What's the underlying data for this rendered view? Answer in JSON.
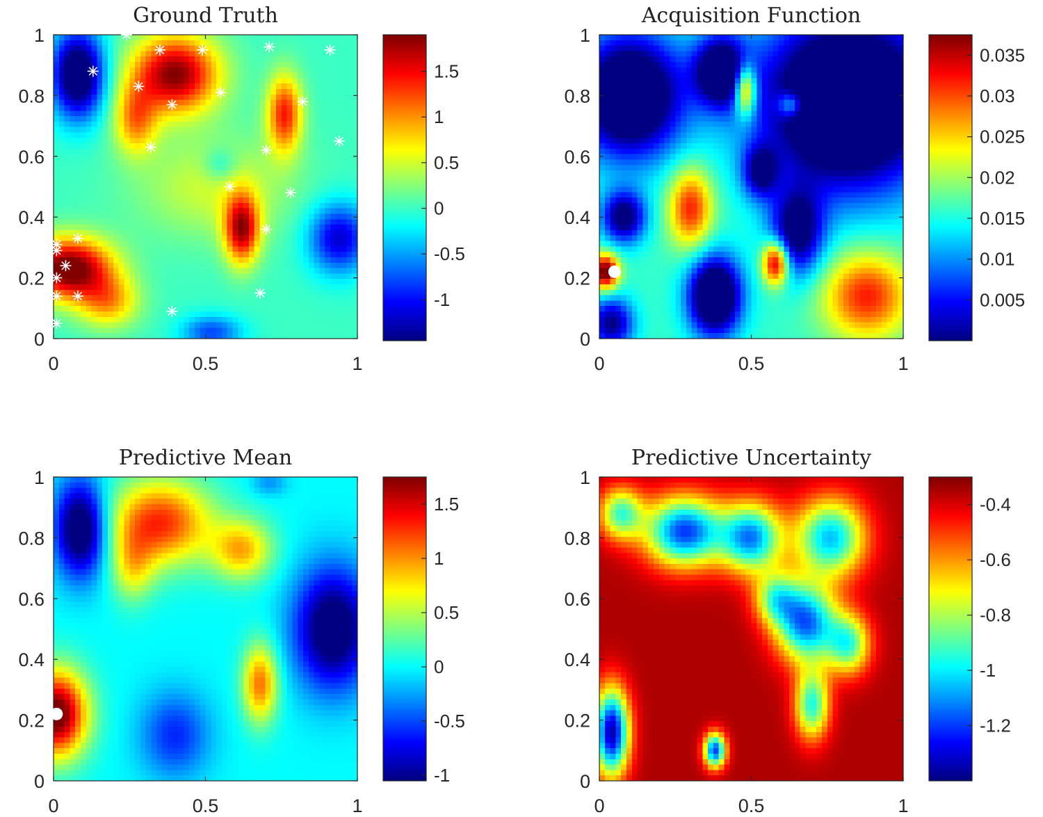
{
  "chart_data": [
    {
      "type": "heatmap",
      "title": "Ground Truth",
      "xlabel": "",
      "ylabel": "",
      "xlim": [
        0,
        1
      ],
      "ylim": [
        0,
        1
      ],
      "xticks": [
        "0",
        "0.5",
        "1"
      ],
      "yticks": [
        "0",
        "0.2",
        "0.4",
        "0.6",
        "0.8",
        "1"
      ],
      "colormap": "jet",
      "clim": [
        -1.45,
        1.9
      ],
      "colorbar_ticks": [
        "-1",
        "-0.5",
        "0",
        "0.5",
        "1",
        "1.5"
      ],
      "colorbar_tick_values": [
        -1,
        -0.5,
        0,
        0.5,
        1,
        1.5
      ],
      "blobs": [
        {
          "x": 0.05,
          "y": 0.23,
          "amp": 2.1,
          "sx": 0.1,
          "sy": 0.07
        },
        {
          "x": 0.18,
          "y": 0.12,
          "amp": 0.9,
          "sx": 0.07,
          "sy": 0.06
        },
        {
          "x": 0.4,
          "y": 0.87,
          "amp": 1.9,
          "sx": 0.1,
          "sy": 0.09
        },
        {
          "x": 0.27,
          "y": 0.72,
          "amp": 1.0,
          "sx": 0.05,
          "sy": 0.08
        },
        {
          "x": 0.62,
          "y": 0.36,
          "amp": 1.7,
          "sx": 0.04,
          "sy": 0.08
        },
        {
          "x": 0.76,
          "y": 0.74,
          "amp": 1.4,
          "sx": 0.04,
          "sy": 0.09
        },
        {
          "x": 0.08,
          "y": 0.87,
          "amp": -1.9,
          "sx": 0.06,
          "sy": 0.1
        },
        {
          "x": 0.94,
          "y": 0.33,
          "amp": -1.2,
          "sx": 0.07,
          "sy": 0.08
        },
        {
          "x": 0.52,
          "y": 0.02,
          "amp": -0.8,
          "sx": 0.07,
          "sy": 0.04
        },
        {
          "x": 0.55,
          "y": 0.57,
          "amp": -0.4,
          "sx": 0.04,
          "sy": 0.04
        },
        {
          "x": 0.53,
          "y": 0.5,
          "amp": 0.5,
          "sx": 0.18,
          "sy": 0.12
        }
      ],
      "markers": [
        {
          "x": 0.24,
          "y": 1.0,
          "style": "star"
        },
        {
          "x": 0.35,
          "y": 0.95,
          "style": "star"
        },
        {
          "x": 0.49,
          "y": 0.95,
          "style": "star"
        },
        {
          "x": 0.71,
          "y": 0.96,
          "style": "star"
        },
        {
          "x": 0.91,
          "y": 0.95,
          "style": "star"
        },
        {
          "x": 0.13,
          "y": 0.88,
          "style": "star"
        },
        {
          "x": 0.28,
          "y": 0.83,
          "style": "star"
        },
        {
          "x": 0.39,
          "y": 0.77,
          "style": "star"
        },
        {
          "x": 0.55,
          "y": 0.81,
          "style": "star"
        },
        {
          "x": 0.82,
          "y": 0.78,
          "style": "star"
        },
        {
          "x": 0.32,
          "y": 0.63,
          "style": "star"
        },
        {
          "x": 0.7,
          "y": 0.62,
          "style": "star"
        },
        {
          "x": 0.94,
          "y": 0.65,
          "style": "star"
        },
        {
          "x": 0.58,
          "y": 0.5,
          "style": "star"
        },
        {
          "x": 0.78,
          "y": 0.48,
          "style": "star"
        },
        {
          "x": 0.7,
          "y": 0.36,
          "style": "star"
        },
        {
          "x": 0.08,
          "y": 0.33,
          "style": "star"
        },
        {
          "x": 0.01,
          "y": 0.31,
          "style": "star"
        },
        {
          "x": 0.01,
          "y": 0.29,
          "style": "star"
        },
        {
          "x": 0.04,
          "y": 0.24,
          "style": "star"
        },
        {
          "x": 0.01,
          "y": 0.2,
          "style": "star"
        },
        {
          "x": 0.01,
          "y": 0.14,
          "style": "star"
        },
        {
          "x": 0.08,
          "y": 0.14,
          "style": "star"
        },
        {
          "x": 0.68,
          "y": 0.15,
          "style": "star"
        },
        {
          "x": 0.39,
          "y": 0.09,
          "style": "star"
        },
        {
          "x": 0.01,
          "y": 0.05,
          "style": "star"
        }
      ]
    },
    {
      "type": "heatmap",
      "title": "Acquisition Function",
      "xlabel": "",
      "ylabel": "",
      "xlim": [
        0,
        1
      ],
      "ylim": [
        0,
        1
      ],
      "xticks": [
        "0",
        "0.5",
        "1"
      ],
      "yticks": [
        "0",
        "0.2",
        "0.4",
        "0.6",
        "0.8",
        "1"
      ],
      "colormap": "jet",
      "clim": [
        0,
        0.0375
      ],
      "colorbar_ticks": [
        "0.005",
        "0.01",
        "0.015",
        "0.02",
        "0.025",
        "0.03",
        "0.035"
      ],
      "colorbar_tick_values": [
        0.005,
        0.01,
        0.015,
        0.02,
        0.025,
        0.03,
        0.035
      ],
      "base": 0.016,
      "blobs": [
        {
          "x": 0.82,
          "y": 0.78,
          "amp": -0.03,
          "sx": 0.2,
          "sy": 0.2
        },
        {
          "x": 0.1,
          "y": 0.8,
          "amp": -0.026,
          "sx": 0.12,
          "sy": 0.14
        },
        {
          "x": 0.4,
          "y": 0.88,
          "amp": -0.022,
          "sx": 0.06,
          "sy": 0.08
        },
        {
          "x": 0.38,
          "y": 0.14,
          "amp": -0.026,
          "sx": 0.06,
          "sy": 0.09
        },
        {
          "x": 0.65,
          "y": 0.35,
          "amp": -0.018,
          "sx": 0.06,
          "sy": 0.1
        },
        {
          "x": 0.08,
          "y": 0.4,
          "amp": -0.018,
          "sx": 0.05,
          "sy": 0.06
        },
        {
          "x": 0.04,
          "y": 0.05,
          "amp": -0.016,
          "sx": 0.05,
          "sy": 0.06
        },
        {
          "x": 0.53,
          "y": 0.55,
          "amp": -0.014,
          "sx": 0.04,
          "sy": 0.06
        },
        {
          "x": 0.3,
          "y": 0.43,
          "amp": 0.016,
          "sx": 0.05,
          "sy": 0.09
        },
        {
          "x": 0.48,
          "y": 0.82,
          "amp": 0.02,
          "sx": 0.025,
          "sy": 0.06
        },
        {
          "x": 0.63,
          "y": 0.77,
          "amp": 0.012,
          "sx": 0.03,
          "sy": 0.03
        },
        {
          "x": 0.58,
          "y": 0.25,
          "amp": 0.022,
          "sx": 0.03,
          "sy": 0.05
        },
        {
          "x": 0.88,
          "y": 0.14,
          "amp": 0.016,
          "sx": 0.1,
          "sy": 0.1
        },
        {
          "x": 0.02,
          "y": 0.22,
          "amp": 0.024,
          "sx": 0.03,
          "sy": 0.04
        }
      ],
      "markers": [
        {
          "x": 0.05,
          "y": 0.22,
          "style": "dot"
        }
      ]
    },
    {
      "type": "heatmap",
      "title": "Predictive Mean",
      "xlabel": "",
      "ylabel": "",
      "xlim": [
        0,
        1
      ],
      "ylim": [
        0,
        1
      ],
      "xticks": [
        "0",
        "0.5",
        "1"
      ],
      "yticks": [
        "0",
        "0.2",
        "0.4",
        "0.6",
        "0.8",
        "1"
      ],
      "colormap": "jet",
      "clim": [
        -1.05,
        1.75
      ],
      "colorbar_ticks": [
        "-1",
        "-0.5",
        "0",
        "0.5",
        "1",
        "1.5"
      ],
      "colorbar_tick_values": [
        -1,
        -0.5,
        0,
        0.5,
        1,
        1.5
      ],
      "blobs": [
        {
          "x": 0.01,
          "y": 0.22,
          "amp": 1.9,
          "sx": 0.07,
          "sy": 0.1
        },
        {
          "x": 0.35,
          "y": 0.85,
          "amp": 1.3,
          "sx": 0.12,
          "sy": 0.1
        },
        {
          "x": 0.26,
          "y": 0.7,
          "amp": 0.6,
          "sx": 0.05,
          "sy": 0.08
        },
        {
          "x": 0.62,
          "y": 0.76,
          "amp": 0.9,
          "sx": 0.07,
          "sy": 0.07
        },
        {
          "x": 0.68,
          "y": 0.32,
          "amp": 1.1,
          "sx": 0.04,
          "sy": 0.09
        },
        {
          "x": 0.09,
          "y": 0.83,
          "amp": -1.4,
          "sx": 0.06,
          "sy": 0.11
        },
        {
          "x": 0.92,
          "y": 0.5,
          "amp": -1.3,
          "sx": 0.09,
          "sy": 0.14
        },
        {
          "x": 0.4,
          "y": 0.15,
          "amp": -0.6,
          "sx": 0.08,
          "sy": 0.1
        },
        {
          "x": 0.71,
          "y": 0.98,
          "amp": -0.3,
          "sx": 0.04,
          "sy": 0.03
        }
      ],
      "markers": [
        {
          "x": 0.01,
          "y": 0.22,
          "style": "dot"
        }
      ]
    },
    {
      "type": "heatmap",
      "title": "Predictive Uncertainty",
      "xlabel": "",
      "ylabel": "",
      "xlim": [
        0,
        1
      ],
      "ylim": [
        0,
        1
      ],
      "xticks": [
        "0",
        "0.5",
        "1"
      ],
      "yticks": [
        "0",
        "0.2",
        "0.4",
        "0.6",
        "0.8",
        "1"
      ],
      "colormap": "jet",
      "clim": [
        -1.4,
        -0.3
      ],
      "colorbar_ticks": [
        "-1.2",
        "-1",
        "-0.8",
        "-0.6",
        "-0.4"
      ],
      "colorbar_tick_values": [
        -1.2,
        -1.0,
        -0.8,
        -0.6,
        -0.4
      ],
      "base": -0.35,
      "blobs": [
        {
          "x": 0.28,
          "y": 0.82,
          "amp": -0.85,
          "sx": 0.09,
          "sy": 0.08
        },
        {
          "x": 0.5,
          "y": 0.8,
          "amp": -0.75,
          "sx": 0.07,
          "sy": 0.08
        },
        {
          "x": 0.76,
          "y": 0.8,
          "amp": -0.7,
          "sx": 0.08,
          "sy": 0.09
        },
        {
          "x": 0.68,
          "y": 0.52,
          "amp": -0.8,
          "sx": 0.07,
          "sy": 0.09
        },
        {
          "x": 0.82,
          "y": 0.45,
          "amp": -0.55,
          "sx": 0.05,
          "sy": 0.07
        },
        {
          "x": 0.7,
          "y": 0.25,
          "amp": -0.6,
          "sx": 0.04,
          "sy": 0.08
        },
        {
          "x": 0.58,
          "y": 0.6,
          "amp": -0.45,
          "sx": 0.05,
          "sy": 0.06
        },
        {
          "x": 0.07,
          "y": 0.88,
          "amp": -0.55,
          "sx": 0.05,
          "sy": 0.06
        },
        {
          "x": 0.04,
          "y": 0.16,
          "amp": -1.0,
          "sx": 0.04,
          "sy": 0.1
        },
        {
          "x": 0.38,
          "y": 0.1,
          "amp": -0.85,
          "sx": 0.025,
          "sy": 0.04
        }
      ],
      "markers": []
    }
  ]
}
